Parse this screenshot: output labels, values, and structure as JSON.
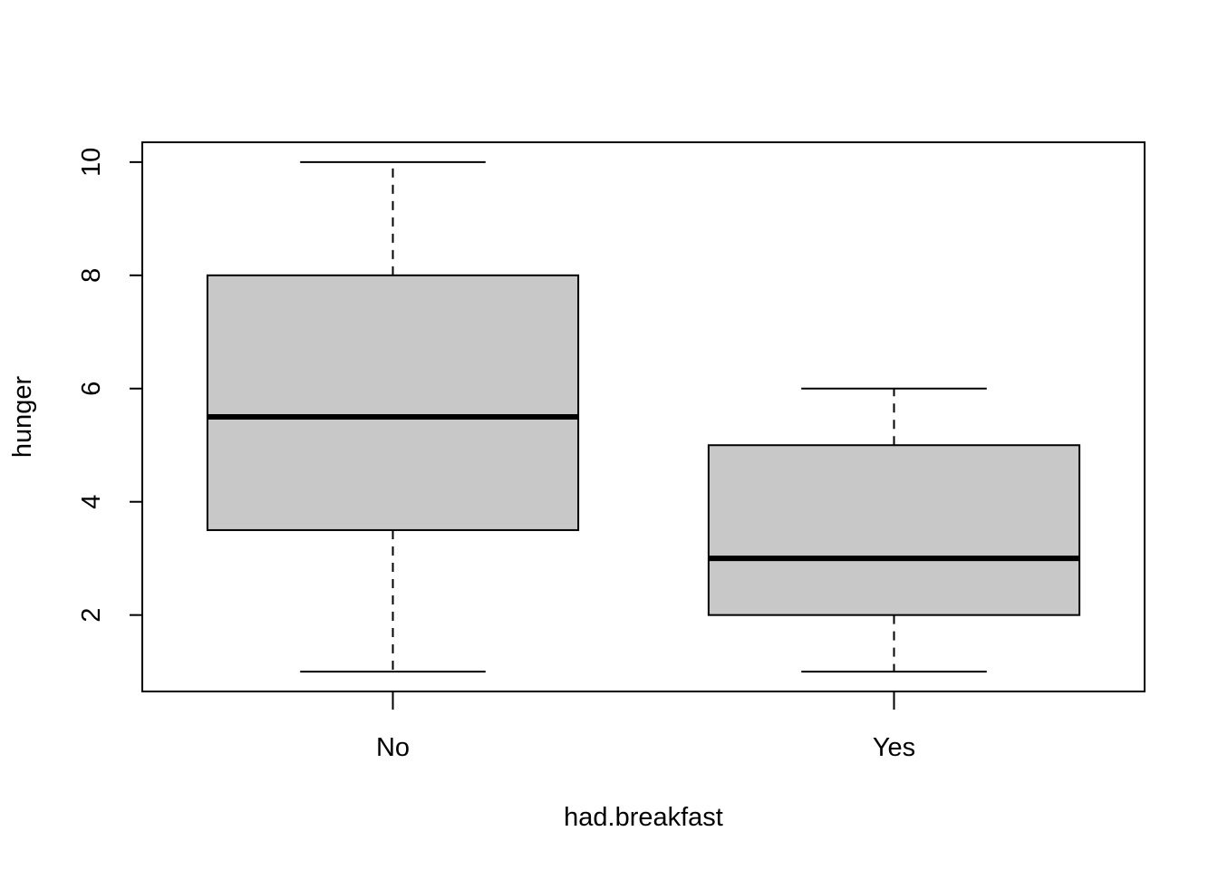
{
  "chart_data": {
    "type": "box",
    "title": "",
    "xlabel": "had.breakfast",
    "ylabel": "hunger",
    "categories": [
      "No",
      "Yes"
    ],
    "ylim": [
      0.65,
      10.35
    ],
    "yticks": [
      2,
      4,
      6,
      8,
      10
    ],
    "grid": false,
    "boxes": [
      {
        "category": "No",
        "min": 1,
        "q1": 3.5,
        "median": 5.5,
        "q3": 8,
        "max": 10
      },
      {
        "category": "Yes",
        "min": 1,
        "q1": 2,
        "median": 3,
        "q3": 5,
        "max": 6
      }
    ],
    "colors": {
      "box_fill": "#c8c8c8",
      "line": "#000000"
    }
  }
}
